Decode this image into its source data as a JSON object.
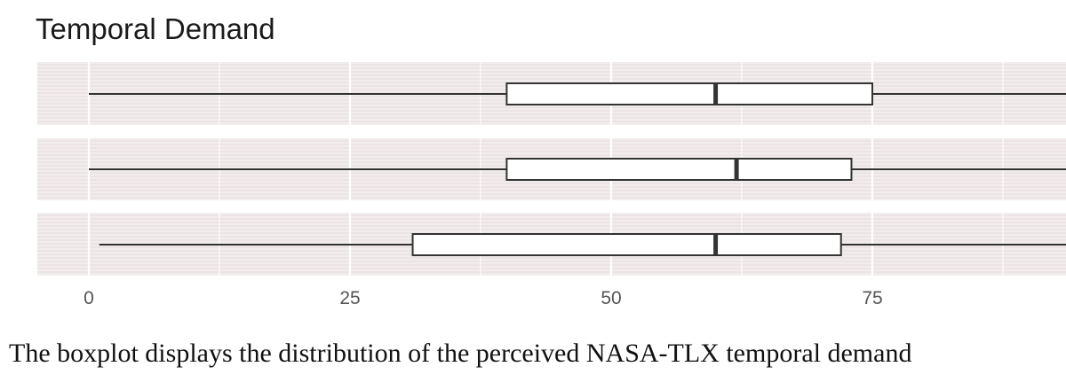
{
  "chart_data": {
    "type": "boxplot",
    "title": "Temporal Demand",
    "xlabel": "",
    "ylabel": "",
    "xlim": [
      -5,
      95
    ],
    "x_ticks": [
      0,
      25,
      50,
      75
    ],
    "x_tick_labels": [
      "0",
      "25",
      "50",
      "75"
    ],
    "grid": true,
    "legend": "none",
    "boxes": [
      {
        "min": 0,
        "q1": 40,
        "median": 60,
        "q3": 75,
        "max": 95
      },
      {
        "min": 0,
        "q1": 40,
        "median": 62,
        "q3": 73,
        "max": 95
      },
      {
        "min": 1,
        "q1": 31,
        "median": 60,
        "q3": 72,
        "max": 95
      }
    ]
  },
  "caption": "The boxplot displays the distribution of the perceived NASA-TLX temporal demand",
  "colors": {
    "panel_background": "#f2eded",
    "grid_line": "#ffffff",
    "box_fill": "#ffffff",
    "box_stroke": "#333333",
    "tick_label": "#555555"
  }
}
